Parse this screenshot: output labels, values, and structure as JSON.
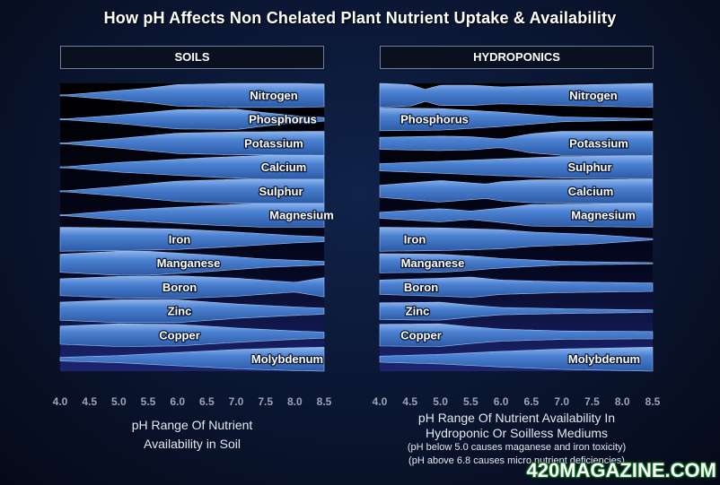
{
  "title": "How pH Affects Non Chelated Plant Nutrient Uptake & Availability",
  "colors": {
    "band_fill": "#3f72c2",
    "band_edge": "#8db4ec",
    "panel_top": "#000000",
    "panel_bottom": "#1c2470"
  },
  "chart_data": [
    {
      "type": "area",
      "header": "SOILS",
      "x_ticks": [
        "4.0",
        "4.5",
        "5.0",
        "5.5",
        "6.0",
        "6.5",
        "7.0",
        "7.5",
        "8.0",
        "8.5"
      ],
      "xlim": [
        4.0,
        8.5
      ],
      "caption": [
        "pH Range Of Nutrient",
        "Availability  in Soil"
      ],
      "nutrients": [
        {
          "label": "Nitrogen",
          "thickness": [
            [
              4.0,
              0
            ],
            [
              5.5,
              0.6
            ],
            [
              6.0,
              0.9
            ],
            [
              7.0,
              1.0
            ],
            [
              8.0,
              1.0
            ],
            [
              8.5,
              0.95
            ]
          ]
        },
        {
          "label": "Phosphorus",
          "thickness": [
            [
              4.0,
              0
            ],
            [
              5.0,
              0.35
            ],
            [
              6.0,
              0.8
            ],
            [
              7.0,
              0.85
            ],
            [
              7.5,
              0.55
            ],
            [
              8.0,
              0.3
            ],
            [
              8.5,
              0.15
            ]
          ]
        },
        {
          "label": "Potassium",
          "thickness": [
            [
              4.0,
              0
            ],
            [
              5.0,
              0.4
            ],
            [
              6.0,
              0.85
            ],
            [
              7.0,
              0.95
            ],
            [
              8.5,
              1.0
            ]
          ]
        },
        {
          "label": "Calcium",
          "thickness": [
            [
              4.0,
              0
            ],
            [
              5.0,
              0.4
            ],
            [
              6.5,
              0.8
            ],
            [
              7.5,
              1.0
            ],
            [
              8.5,
              1.0
            ]
          ]
        },
        {
          "label": "Sulphur",
          "thickness": [
            [
              4.0,
              0
            ],
            [
              5.0,
              0.4
            ],
            [
              6.0,
              0.85
            ],
            [
              7.0,
              1.0
            ],
            [
              8.5,
              1.0
            ]
          ]
        },
        {
          "label": "Magnesium",
          "thickness": [
            [
              4.0,
              0
            ],
            [
              5.0,
              0.4
            ],
            [
              6.5,
              0.8
            ],
            [
              7.5,
              1.0
            ],
            [
              8.5,
              1.0
            ]
          ]
        },
        {
          "label": "Iron",
          "thickness": [
            [
              4.0,
              1.0
            ],
            [
              5.0,
              0.95
            ],
            [
              6.0,
              0.85
            ],
            [
              7.0,
              0.6
            ],
            [
              8.0,
              0.3
            ],
            [
              8.5,
              0.2
            ]
          ]
        },
        {
          "label": "Manganese",
          "thickness": [
            [
              4.0,
              0.75
            ],
            [
              5.0,
              1.0
            ],
            [
              5.5,
              1.0
            ],
            [
              6.5,
              0.7
            ],
            [
              7.5,
              0.35
            ],
            [
              8.5,
              0.15
            ]
          ]
        },
        {
          "label": "Boron",
          "thickness": [
            [
              4.0,
              0.7
            ],
            [
              5.0,
              0.9
            ],
            [
              6.0,
              0.95
            ],
            [
              7.0,
              0.75
            ],
            [
              8.0,
              0.4
            ],
            [
              8.5,
              0.8
            ]
          ]
        },
        {
          "label": "Zinc",
          "thickness": [
            [
              4.0,
              0.75
            ],
            [
              5.0,
              0.95
            ],
            [
              6.0,
              0.95
            ],
            [
              7.0,
              0.6
            ],
            [
              8.0,
              0.35
            ],
            [
              8.5,
              0.25
            ]
          ]
        },
        {
          "label": "Copper",
          "thickness": [
            [
              4.0,
              0.75
            ],
            [
              5.0,
              0.95
            ],
            [
              6.0,
              0.9
            ],
            [
              7.0,
              0.6
            ],
            [
              8.0,
              0.35
            ],
            [
              8.5,
              0.25
            ]
          ]
        },
        {
          "label": "Molybdenum",
          "thickness": [
            [
              4.0,
              0.15
            ],
            [
              5.0,
              0.3
            ],
            [
              6.0,
              0.55
            ],
            [
              7.0,
              0.8
            ],
            [
              8.0,
              0.95
            ],
            [
              8.5,
              1.0
            ]
          ]
        }
      ]
    },
    {
      "type": "area",
      "header": "HYDROPONICS",
      "x_ticks": [
        "4.0",
        "4.5",
        "5.0",
        "5.5",
        "6.0",
        "6.5",
        "7.0",
        "7.5",
        "8.0",
        "8.5"
      ],
      "xlim": [
        4.0,
        8.5
      ],
      "caption": [
        "pH Range Of Nutrient Availability In",
        "Hydroponic Or Soilless Mediums"
      ],
      "notes": [
        "(pH below 5.0 causes maganese and iron toxicity)",
        "(pH above 6.8 causes micro nutrient deficiencies)"
      ],
      "nutrients": [
        {
          "label": "Nitrogen",
          "thickness": [
            [
              4.0,
              1.0
            ],
            [
              4.5,
              0.9
            ],
            [
              4.75,
              0.5
            ],
            [
              5.0,
              0.85
            ],
            [
              5.5,
              0.85
            ],
            [
              6.0,
              0.7
            ],
            [
              7.0,
              0.85
            ],
            [
              8.5,
              1.0
            ]
          ]
        },
        {
          "label": "Phosphorus",
          "thickness": [
            [
              4.0,
              0.95
            ],
            [
              5.0,
              0.9
            ],
            [
              5.5,
              0.75
            ],
            [
              6.0,
              0.6
            ],
            [
              6.5,
              0.4
            ],
            [
              7.0,
              0.2
            ],
            [
              8.5,
              0.05
            ]
          ]
        },
        {
          "label": "Potassium",
          "thickness": [
            [
              4.0,
              0.5
            ],
            [
              5.0,
              0.6
            ],
            [
              5.5,
              0.55
            ],
            [
              6.0,
              0.35
            ],
            [
              6.5,
              0.8
            ],
            [
              7.0,
              1.0
            ],
            [
              8.5,
              1.0
            ]
          ]
        },
        {
          "label": "Sulphur",
          "thickness": [
            [
              4.0,
              0.3
            ],
            [
              5.0,
              0.5
            ],
            [
              6.0,
              0.7
            ],
            [
              7.0,
              0.9
            ],
            [
              8.5,
              0.95
            ]
          ]
        },
        {
          "label": "Calcium",
          "thickness": [
            [
              4.0,
              0.5
            ],
            [
              5.0,
              0.9
            ],
            [
              5.75,
              0.6
            ],
            [
              6.0,
              0.8
            ],
            [
              6.5,
              0.95
            ],
            [
              8.5,
              1.0
            ]
          ]
        },
        {
          "label": "Magnesium",
          "thickness": [
            [
              4.0,
              0.25
            ],
            [
              5.0,
              0.55
            ],
            [
              5.5,
              0.35
            ],
            [
              6.0,
              0.6
            ],
            [
              6.5,
              0.9
            ],
            [
              8.5,
              1.0
            ]
          ]
        },
        {
          "label": "Iron",
          "thickness": [
            [
              4.0,
              1.0
            ],
            [
              5.0,
              0.95
            ],
            [
              6.0,
              0.8
            ],
            [
              6.5,
              0.6
            ],
            [
              7.5,
              0.4
            ],
            [
              8.5,
              0.05
            ]
          ]
        },
        {
          "label": "Manganese",
          "thickness": [
            [
              4.0,
              0.8
            ],
            [
              5.0,
              0.75
            ],
            [
              5.5,
              0.6
            ],
            [
              6.0,
              0.4
            ],
            [
              7.0,
              0.15
            ],
            [
              8.5,
              0.05
            ]
          ]
        },
        {
          "label": "Boron",
          "thickness": [
            [
              4.0,
              0.6
            ],
            [
              5.0,
              0.75
            ],
            [
              5.5,
              0.85
            ],
            [
              6.0,
              0.6
            ],
            [
              7.0,
              0.45
            ],
            [
              8.5,
              0.35
            ]
          ]
        },
        {
          "label": "Zinc",
          "thickness": [
            [
              4.0,
              0.7
            ],
            [
              5.0,
              0.75
            ],
            [
              5.5,
              0.5
            ],
            [
              6.0,
              0.3
            ],
            [
              7.0,
              0.2
            ],
            [
              8.5,
              0.1
            ]
          ]
        },
        {
          "label": "Copper",
          "thickness": [
            [
              4.0,
              0.9
            ],
            [
              5.0,
              0.95
            ],
            [
              5.5,
              0.7
            ],
            [
              6.0,
              0.5
            ],
            [
              7.0,
              0.35
            ],
            [
              8.5,
              0.3
            ]
          ]
        },
        {
          "label": "Molybdenum",
          "thickness": [
            [
              4.0,
              0.25
            ],
            [
              5.0,
              0.4
            ],
            [
              6.0,
              0.65
            ],
            [
              7.0,
              0.85
            ],
            [
              8.0,
              0.95
            ],
            [
              8.5,
              1.0
            ]
          ]
        }
      ]
    }
  ],
  "watermark": "420MAGAZINE.COM"
}
